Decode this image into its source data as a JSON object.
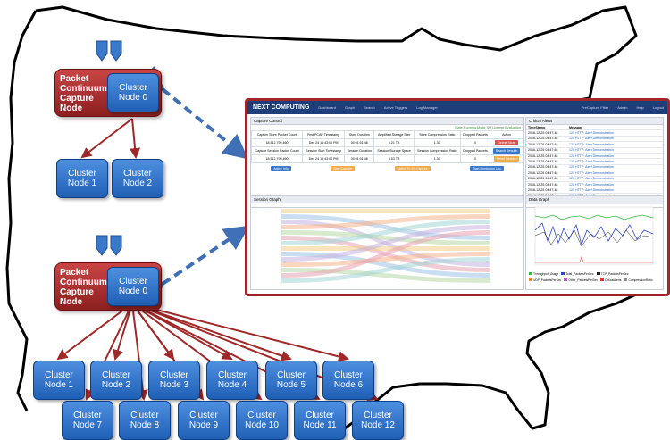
{
  "pcc_label": [
    "Packet",
    "Continuum",
    "Capture",
    "Node"
  ],
  "node0_label": [
    "Cluster",
    "Node 0"
  ],
  "top_cluster_nodes": [
    [
      "Cluster",
      "Node 1"
    ],
    [
      "Cluster",
      "Node 2"
    ]
  ],
  "bottom_cluster_nodes": [
    [
      "Cluster",
      "Node 1"
    ],
    [
      "Cluster",
      "Node 2"
    ],
    [
      "Cluster",
      "Node 3"
    ],
    [
      "Cluster",
      "Node 4"
    ],
    [
      "Cluster",
      "Node 5"
    ],
    [
      "Cluster",
      "Node 6"
    ],
    [
      "Cluster",
      "Node 7"
    ],
    [
      "Cluster",
      "Node 8"
    ],
    [
      "Cluster",
      "Node 9"
    ],
    [
      "Cluster",
      "Node 10"
    ],
    [
      "Cluster",
      "Node 11"
    ],
    [
      "Cluster",
      "Node 12"
    ]
  ],
  "screen": {
    "logo": "NEXT COMPUTING",
    "nav": [
      "Dashboard",
      "Graph",
      "Search",
      "Active Triggers",
      "Log Manager",
      "PreCapture Filter",
      "Admin",
      "Help",
      "Logout"
    ],
    "capture_title": "Capture Control",
    "status": "State Running  Mode SQ  License Evaluation",
    "row1_head": [
      "CapLim Store Packet Count",
      "First PCAP Timestamp",
      "Store Duration",
      "Amplified Storage Size",
      "Store Compression Ratio",
      "Dropped Packets",
      "Action"
    ],
    "row1_vals": [
      "18,512,795,460",
      "Dec 24 16:43:00 PM",
      "00:01:01:46",
      "5.21 TB",
      "1.30",
      "0"
    ],
    "row2_head": [
      "Capture Session Packet Count",
      "Session Start Timestamp",
      "Session Duration",
      "Session Storage Space",
      "Session Compression Ratio",
      "Dropped Packets"
    ],
    "row2_vals": [
      "18,512,795,460",
      "Dec 24 16:43:00 PM",
      "00:01:01:46",
      "4.03 TB",
      "1.30",
      "0"
    ],
    "btn_stop": "Delete Store",
    "btn_search": "Search Session",
    "btn_reset": "Reset Session",
    "bar_btns": [
      "Active Info",
      "Stop Capture",
      "Switch To 2G Capture",
      "Start Monitoring Log"
    ],
    "alerts_title": "Critical Alerts",
    "alerts_head": [
      "TimeStamp",
      "Message"
    ],
    "alerts": [
      [
        "2016-12-25 04:47:48",
        "120 HTTP: Alert Demonstration"
      ],
      [
        "2016-12-25 04:47:48",
        "120 HTTP: Alert Demonstration"
      ],
      [
        "2016-12-25 04:47:48",
        "120 HTTP: Alert Demonstration"
      ],
      [
        "2016-12-25 04:47:48",
        "120 HTTP: Alert Demonstration"
      ],
      [
        "2016-12-25 04:47:48",
        "120 HTTP: Alert Demonstration"
      ],
      [
        "2016-12-25 04:47:48",
        "120 HTTP: Alert Demonstration"
      ],
      [
        "2016-12-25 04:47:48",
        "120 HTTP: Alert Demonstration"
      ],
      [
        "2016-12-25 04:47:48",
        "120 HTTP: Alert Demonstration"
      ],
      [
        "2016-12-25 04:47:48",
        "120 HTTP: Alert Demonstration"
      ],
      [
        "2016-12-25 04:47:48",
        "120 HTTP: Alert Demonstration"
      ],
      [
        "2016-12-25 04:47:48",
        "120 HTTP: Alert Demonstration"
      ],
      [
        "2016-12-25 04:47:48",
        "120 HTTP: Alert Demonstration"
      ],
      [
        "2016-12-25 04:47:48",
        "120 HTTP: Alert Demonstration"
      ]
    ],
    "session_title": "Session Graph",
    "data_title": "Data Graph",
    "legend": [
      "Throughput_Usage",
      "Total_PacketsPerSec",
      "TCP_PacketsPerSec",
      "UDP_PacketsPerSec",
      "Other_PacketsPerSec",
      "CriticalAlerts",
      "CompressionRatio"
    ],
    "colors": {
      "accent_red": "#a12828",
      "node_blue": "#2f73c8",
      "arrow_dash": "#3f6fb5",
      "map_line": "#000000"
    }
  }
}
